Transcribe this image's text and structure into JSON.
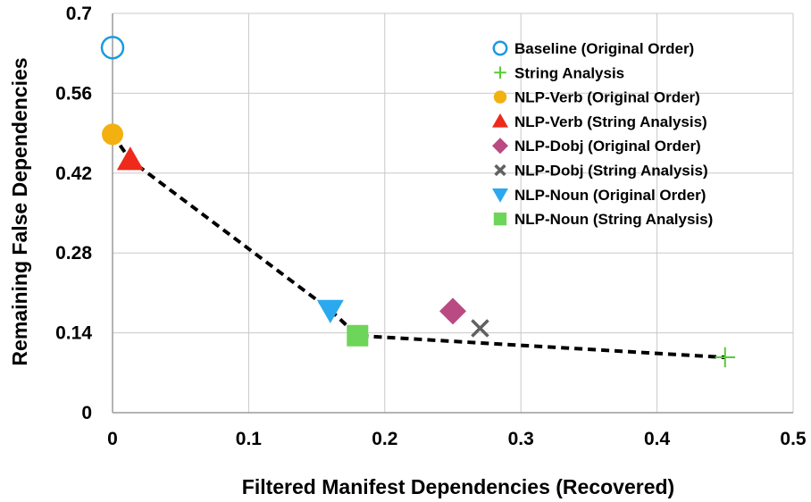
{
  "chart_data": {
    "type": "scatter",
    "title": "",
    "xlabel": "Filtered Manifest Dependencies (Recovered)",
    "ylabel": "Remaining False Dependencies",
    "xlim": [
      0,
      0.5
    ],
    "ylim": [
      0,
      0.7
    ],
    "x_ticks": [
      "0",
      "0.1",
      "0.2",
      "0.3",
      "0.4",
      "0.5"
    ],
    "y_ticks": [
      "0",
      "0.14",
      "0.28",
      "0.42",
      "0.56",
      "0.7"
    ],
    "grid": true,
    "legend_position": "top-right",
    "series": [
      {
        "name": "Baseline (Original Order)",
        "marker": "open-circle",
        "color": "#1a9be0",
        "points": [
          {
            "x": 0.0,
            "y": 0.64
          }
        ]
      },
      {
        "name": "String Analysis",
        "marker": "plus",
        "color": "#55cc33",
        "points": [
          {
            "x": 0.45,
            "y": 0.097
          }
        ]
      },
      {
        "name": "NLP-Verb (Original Order)",
        "marker": "circle",
        "color": "#f2b111",
        "points": [
          {
            "x": 0.0,
            "y": 0.488
          }
        ]
      },
      {
        "name": "NLP-Verb (String Analysis)",
        "marker": "triangle-up",
        "color": "#ee2a1b",
        "points": [
          {
            "x": 0.013,
            "y": 0.443
          }
        ]
      },
      {
        "name": "NLP-Dobj (Original Order)",
        "marker": "diamond",
        "color": "#b94a82",
        "points": [
          {
            "x": 0.25,
            "y": 0.178
          }
        ]
      },
      {
        "name": "NLP-Dobj (String Analysis)",
        "marker": "x",
        "color": "#616161",
        "points": [
          {
            "x": 0.27,
            "y": 0.148
          }
        ]
      },
      {
        "name": "NLP-Noun (Original Order)",
        "marker": "triangle-down",
        "color": "#2aa9ee",
        "points": [
          {
            "x": 0.16,
            "y": 0.18
          }
        ]
      },
      {
        "name": "NLP-Noun (String Analysis)",
        "marker": "square",
        "color": "#6dd55a",
        "points": [
          {
            "x": 0.18,
            "y": 0.135
          }
        ]
      }
    ],
    "frontier_line": {
      "style": "dashed",
      "color": "#000000",
      "points": [
        {
          "x": 0.0,
          "y": 0.488
        },
        {
          "x": 0.013,
          "y": 0.443
        },
        {
          "x": 0.16,
          "y": 0.18
        },
        {
          "x": 0.18,
          "y": 0.135
        },
        {
          "x": 0.45,
          "y": 0.097
        }
      ]
    }
  }
}
